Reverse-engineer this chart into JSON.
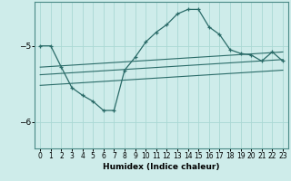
{
  "xlabel": "Humidex (Indice chaleur)",
  "ylabel": "",
  "background_color": "#ceecea",
  "line_color": "#2a6b68",
  "grid_color": "#aad8d4",
  "xlim": [
    -0.5,
    23.5
  ],
  "ylim": [
    -6.35,
    -4.42
  ],
  "yticks": [
    -6,
    -5
  ],
  "xticks": [
    0,
    1,
    2,
    3,
    4,
    5,
    6,
    7,
    8,
    9,
    10,
    11,
    12,
    13,
    14,
    15,
    16,
    17,
    18,
    19,
    20,
    21,
    22,
    23
  ],
  "line1_x": [
    0,
    1,
    2,
    3,
    4,
    5,
    6,
    7,
    8,
    9,
    10,
    11,
    12,
    13,
    14,
    15,
    16,
    17,
    18,
    19,
    20,
    21,
    22,
    23
  ],
  "line1_y": [
    -5.0,
    -5.0,
    -5.28,
    -5.55,
    -5.65,
    -5.73,
    -5.85,
    -5.85,
    -5.32,
    -5.15,
    -4.95,
    -4.82,
    -4.72,
    -4.58,
    -4.52,
    -4.52,
    -4.75,
    -4.85,
    -5.05,
    -5.1,
    -5.12,
    -5.2,
    -5.08,
    -5.2
  ],
  "line2_x": [
    0,
    23
  ],
  "line2_y": [
    -5.28,
    -5.08
  ],
  "line3_x": [
    0,
    23
  ],
  "line3_y": [
    -5.38,
    -5.18
  ],
  "line4_x": [
    0,
    23
  ],
  "line4_y": [
    -5.52,
    -5.32
  ],
  "tick_fontsize": 5.5,
  "xlabel_fontsize": 6.5
}
